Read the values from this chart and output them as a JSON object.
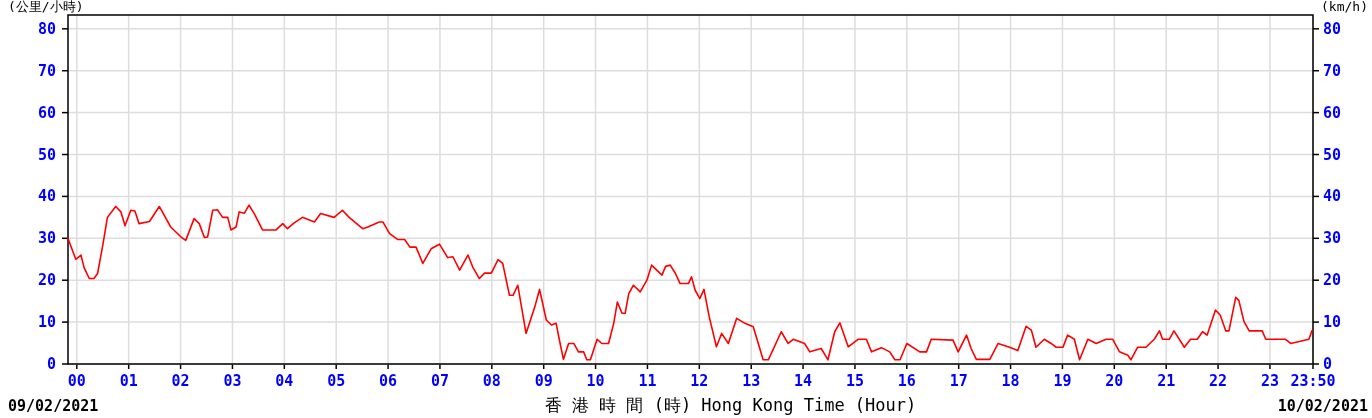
{
  "chart_data": {
    "type": "line",
    "ylabel": "(公里/小時)",
    "y2label": "(km/h)",
    "xlabel": "香 港 時 間 (時)  Hong Kong Time (Hour)",
    "annotations": [
      "09/02/2021",
      "10/02/2021"
    ],
    "color": "#ff0000",
    "grid": true,
    "xlim": [
      -0.17,
      23.83
    ],
    "ylim": [
      0,
      83.3
    ],
    "y2lim": [
      0,
      83.3
    ],
    "xticks": [
      {
        "value": 0,
        "label": "00"
      },
      {
        "value": 1,
        "label": "01"
      },
      {
        "value": 2,
        "label": "02"
      },
      {
        "value": 3,
        "label": "03"
      },
      {
        "value": 4,
        "label": "04"
      },
      {
        "value": 5,
        "label": "05"
      },
      {
        "value": 6,
        "label": "06"
      },
      {
        "value": 7,
        "label": "07"
      },
      {
        "value": 8,
        "label": "08"
      },
      {
        "value": 9,
        "label": "09"
      },
      {
        "value": 10,
        "label": "10"
      },
      {
        "value": 11,
        "label": "11"
      },
      {
        "value": 12,
        "label": "12"
      },
      {
        "value": 13,
        "label": "13"
      },
      {
        "value": 14,
        "label": "14"
      },
      {
        "value": 15,
        "label": "15"
      },
      {
        "value": 16,
        "label": "16"
      },
      {
        "value": 17,
        "label": "17"
      },
      {
        "value": 18,
        "label": "18"
      },
      {
        "value": 19,
        "label": "19"
      },
      {
        "value": 20,
        "label": "20"
      },
      {
        "value": 21,
        "label": "21"
      },
      {
        "value": 22,
        "label": "22"
      },
      {
        "value": 23,
        "label": "23"
      },
      {
        "value": 23.83,
        "label": "23:50"
      }
    ],
    "yticks": [
      0,
      10,
      20,
      30,
      40,
      50,
      60,
      70,
      80
    ],
    "y2ticks": [
      0,
      10,
      20,
      30,
      40,
      50,
      60,
      70,
      80
    ],
    "x": [
      -0.17,
      -0.12,
      -0.02,
      0.08,
      0.14,
      0.24,
      0.33,
      0.4,
      0.5,
      0.59,
      0.75,
      0.85,
      0.93,
      1.04,
      1.12,
      1.2,
      1.4,
      1.59,
      1.81,
      2.01,
      2.1,
      2.26,
      2.36,
      2.46,
      2.52,
      2.62,
      2.71,
      2.81,
      2.91,
      2.97,
      3.07,
      3.13,
      3.23,
      3.32,
      3.42,
      3.58,
      3.84,
      3.97,
      4.06,
      4.19,
      4.35,
      4.58,
      4.7,
      4.96,
      5.12,
      5.25,
      5.51,
      5.61,
      5.83,
      5.9,
      6.03,
      6.19,
      6.32,
      6.42,
      6.54,
      6.67,
      6.83,
      6.99,
      7.15,
      7.25,
      7.38,
      7.54,
      7.63,
      7.76,
      7.86,
      7.99,
      8.12,
      8.21,
      8.34,
      8.41,
      8.5,
      8.66,
      8.83,
      8.92,
      9.05,
      9.15,
      9.24,
      9.29,
      9.38,
      9.48,
      9.58,
      9.67,
      9.77,
      9.83,
      9.9,
      10.03,
      10.12,
      10.25,
      10.35,
      10.42,
      10.51,
      10.57,
      10.64,
      10.73,
      10.86,
      10.99,
      11.08,
      11.18,
      11.28,
      11.35,
      11.44,
      11.54,
      11.63,
      11.79,
      11.85,
      11.92,
      12.01,
      12.09,
      12.19,
      12.33,
      12.43,
      12.56,
      12.72,
      12.88,
      13.04,
      13.23,
      13.33,
      13.58,
      13.71,
      13.81,
      14.03,
      14.13,
      14.35,
      14.48,
      14.61,
      14.71,
      14.87,
      15.06,
      15.22,
      15.32,
      15.51,
      15.67,
      15.77,
      15.87,
      16.0,
      16.25,
      16.38,
      16.47,
      16.89,
      16.99,
      17.15,
      17.24,
      17.34,
      17.6,
      17.76,
      17.98,
      18.14,
      18.3,
      18.4,
      18.49,
      18.65,
      18.78,
      18.88,
      19.01,
      19.1,
      19.23,
      19.33,
      19.49,
      19.65,
      19.84,
      19.97,
      20.1,
      20.26,
      20.32,
      20.45,
      20.61,
      20.77,
      20.87,
      20.93,
      21.06,
      21.15,
      21.35,
      21.47,
      21.6,
      21.7,
      21.79,
      21.95,
      22.04,
      22.15,
      22.21,
      22.34,
      22.4,
      22.5,
      22.6,
      22.85,
      22.92,
      23.3,
      23.4,
      23.75,
      23.81
    ],
    "values": [
      30,
      28.3,
      25,
      26,
      23,
      20.4,
      20.4,
      21.6,
      28.3,
      35,
      37.6,
      36.3,
      33,
      36.7,
      36.5,
      33.5,
      34,
      37.6,
      32.7,
      30.3,
      29.5,
      34.7,
      33.5,
      30.2,
      30.3,
      36.7,
      36.8,
      35,
      35,
      32,
      32.7,
      36.3,
      36,
      37.9,
      35.9,
      32,
      32,
      33.5,
      32.3,
      33.7,
      35,
      33.9,
      35.9,
      35,
      36.7,
      35,
      32.3,
      32.7,
      33.9,
      33.9,
      31.1,
      29.7,
      29.7,
      27.9,
      27.9,
      24,
      27.5,
      28.6,
      25.4,
      25.6,
      22.4,
      26,
      23.2,
      20.4,
      21.7,
      21.7,
      24.9,
      24,
      16.4,
      16.4,
      18.8,
      7.3,
      13.7,
      17.8,
      10.5,
      9.3,
      9.7,
      6.5,
      1.1,
      4.9,
      4.9,
      2.9,
      2.9,
      1,
      1,
      5.9,
      4.9,
      4.9,
      9.7,
      14.8,
      12.1,
      12.1,
      16.8,
      18.8,
      17.2,
      20,
      23.6,
      22.4,
      21.2,
      23.3,
      23.6,
      21.6,
      19.2,
      19.2,
      20.8,
      17.6,
      15.6,
      17.8,
      11.3,
      4.1,
      7.3,
      4.9,
      10.9,
      9.7,
      8.9,
      1,
      1,
      7.7,
      4.9,
      5.9,
      4.9,
      2.9,
      3.7,
      1,
      7.7,
      9.8,
      4.1,
      5.9,
      5.9,
      2.9,
      3.9,
      2.9,
      1,
      1,
      4.9,
      2.9,
      2.9,
      5.9,
      5.7,
      2.9,
      6.9,
      3.7,
      1.1,
      1.1,
      4.9,
      4,
      3.2,
      9,
      8.1,
      4,
      5.9,
      4.9,
      4,
      4,
      6.9,
      5.9,
      1,
      5.9,
      4.9,
      5.9,
      5.9,
      2.9,
      2.1,
      1,
      4,
      4,
      5.9,
      7.9,
      5.9,
      5.9,
      7.9,
      4,
      5.9,
      5.9,
      7.7,
      6.9,
      12.9,
      11.7,
      7.9,
      7.9,
      15.9,
      15.2,
      10.1,
      7.9,
      7.9,
      5.9,
      5.9,
      4.9,
      5.9,
      7.9
    ]
  }
}
